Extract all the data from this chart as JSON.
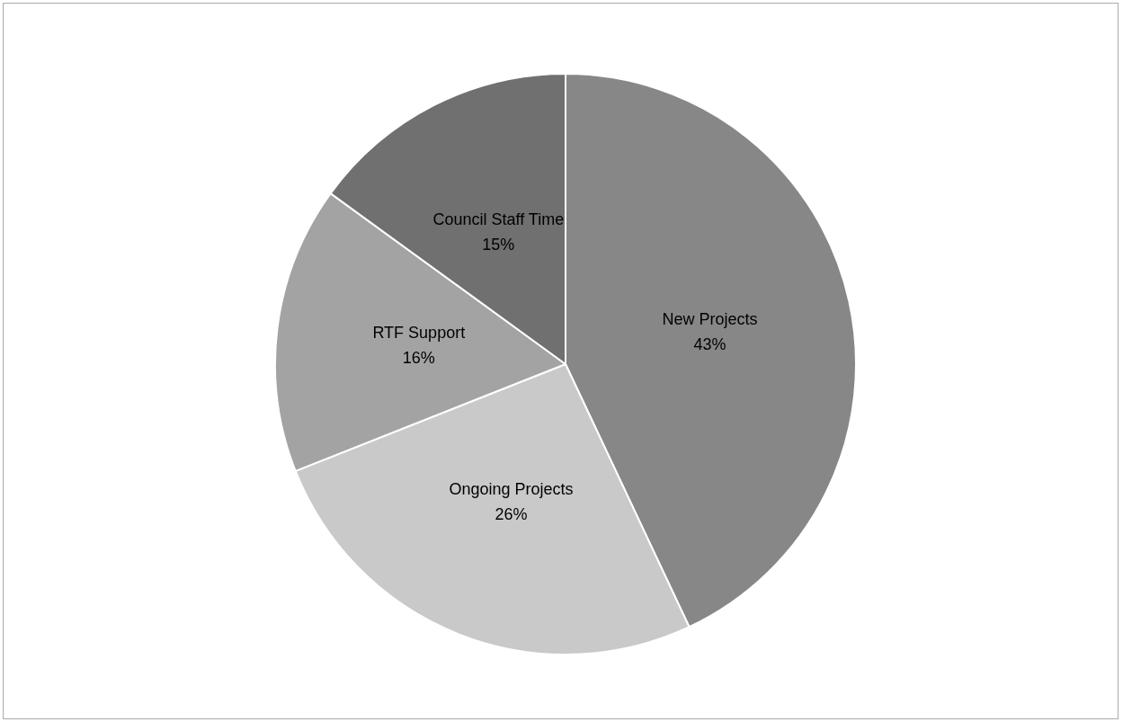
{
  "chart_data": {
    "type": "pie",
    "categories": [
      "New Projects",
      "Ongoing Projects",
      "RTF Support",
      "Council Staff Time"
    ],
    "values": [
      43,
      26,
      16,
      15
    ],
    "colors": [
      "#878787",
      "#c9c9c9",
      "#a3a3a3",
      "#707070"
    ],
    "value_labels": [
      "43%",
      "26%",
      "16%",
      "15%"
    ],
    "legend": false
  }
}
